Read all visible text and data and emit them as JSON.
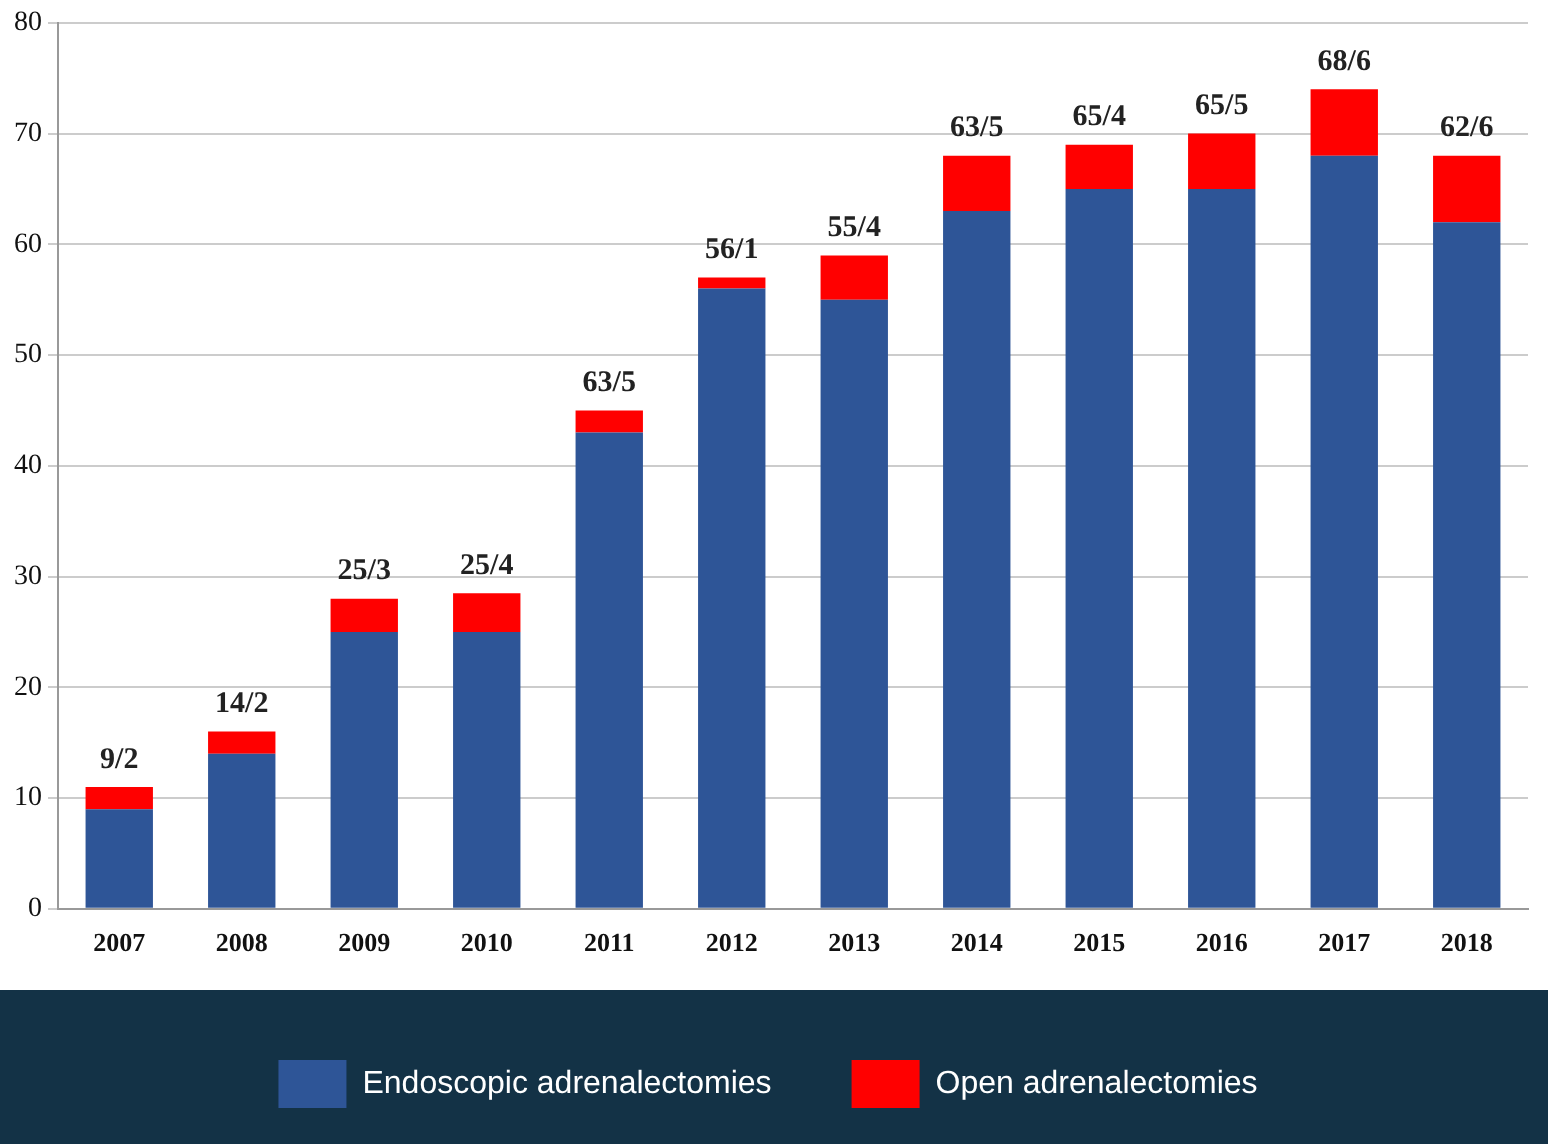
{
  "chart_data": {
    "type": "bar",
    "stacked": true,
    "categories": [
      "2007",
      "2008",
      "2009",
      "2010",
      "2011",
      "2012",
      "2013",
      "2014",
      "2015",
      "2016",
      "2017",
      "2018"
    ],
    "series": [
      {
        "name": "Endoscopic adrenalectomies",
        "color": "#2e5597",
        "values": [
          9,
          14,
          25,
          25,
          43,
          56,
          55,
          63,
          65,
          65,
          68,
          62
        ]
      },
      {
        "name": "Open adrenalectomies",
        "color": "#ff0000",
        "values": [
          2,
          2,
          3,
          3.5,
          2,
          1,
          4,
          5,
          4,
          5,
          6,
          6
        ]
      }
    ],
    "totals": [
      "9/2",
      "14/2",
      "25/3",
      "25/4",
      "63/5",
      "56/1",
      "55/4",
      "63/5",
      "65/4",
      "65/5",
      "68/6",
      "62/6"
    ],
    "ylim": [
      0,
      80
    ],
    "yticks": [
      0,
      10,
      20,
      30,
      40,
      50,
      60,
      70,
      80
    ],
    "grid": "y",
    "legend": "bottom"
  }
}
